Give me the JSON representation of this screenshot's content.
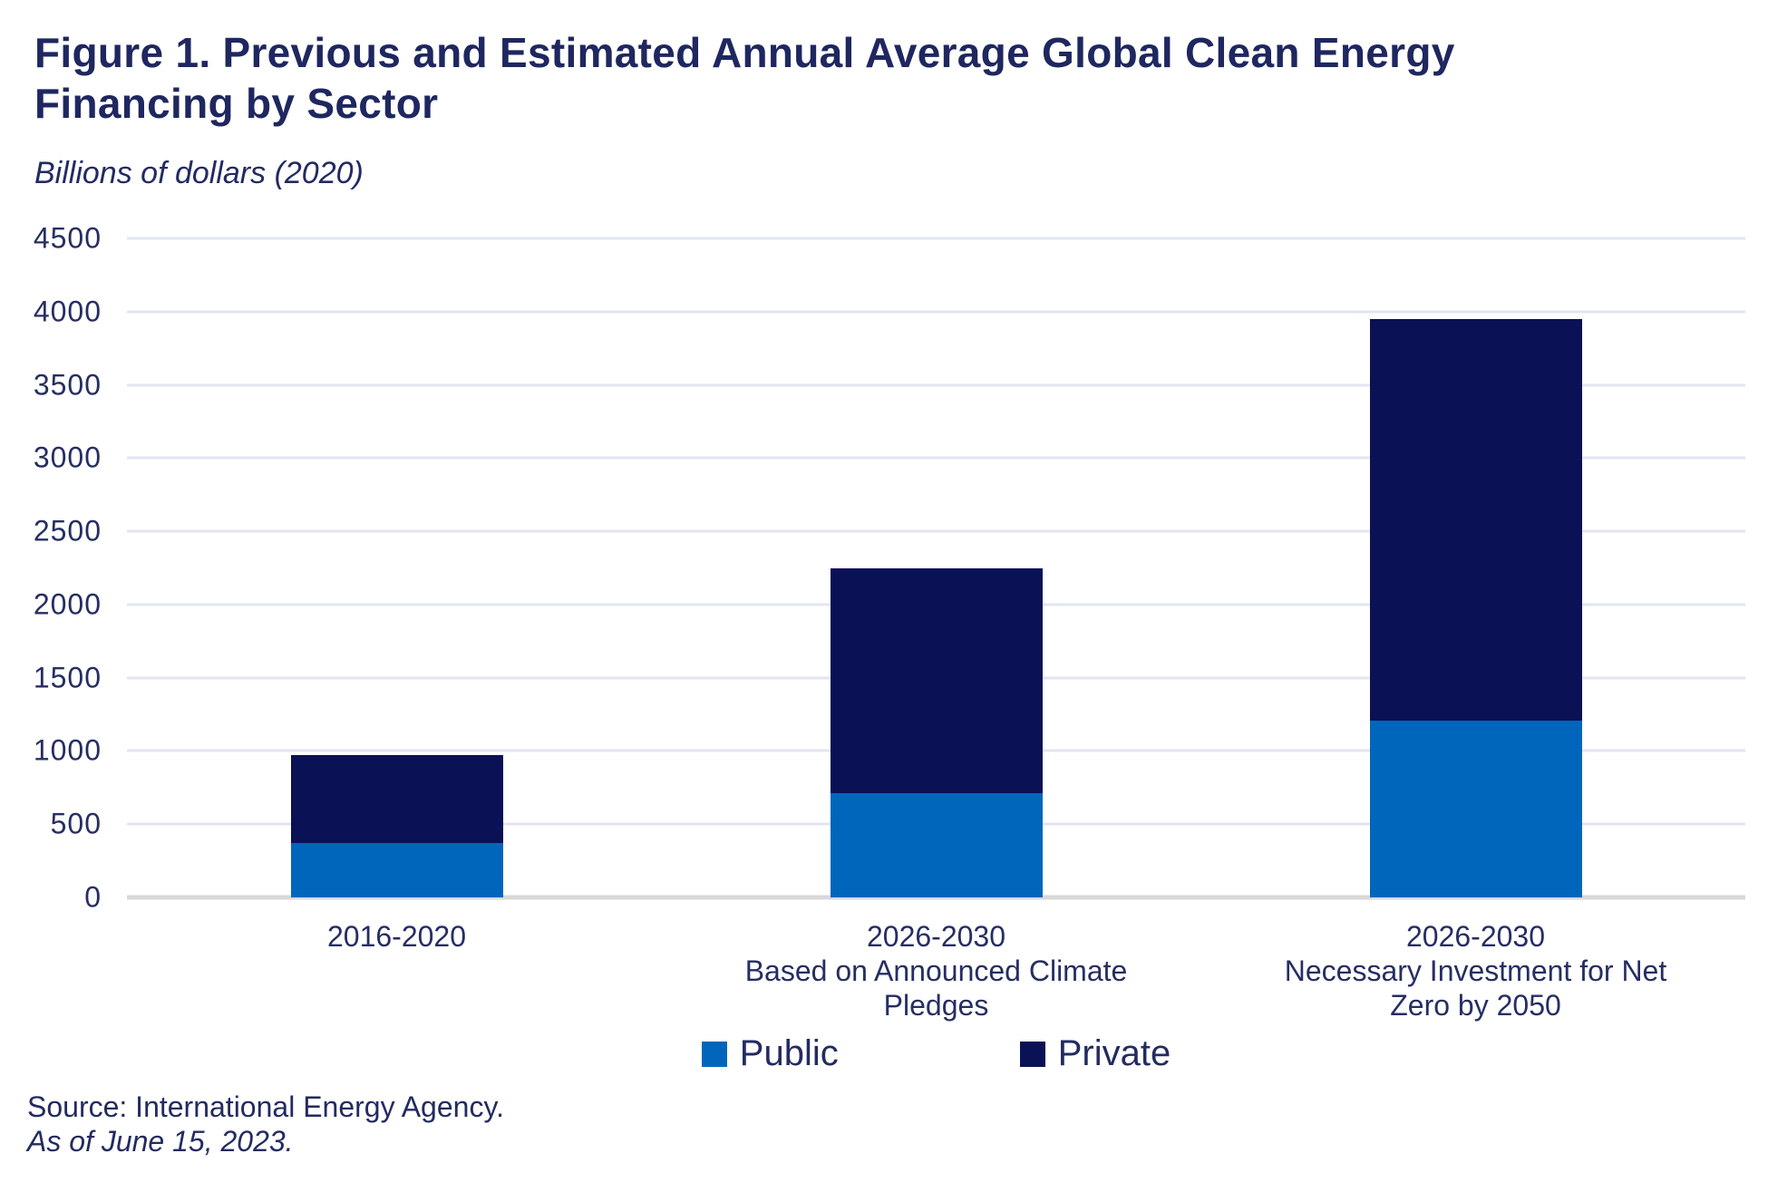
{
  "figure": {
    "title": "Figure 1. Previous and Estimated Annual Average Global Clean Energy Financing by Sector",
    "subtitle": "Billions of dollars (2020)",
    "source_line": "Source: International Energy Agency.",
    "as_of_line": "As of June 15, 2023."
  },
  "colors": {
    "public": "#0066BC",
    "private": "#0A1155",
    "text": "#20285E",
    "gridline": "#E2E5F1",
    "axis_line": "#D8D8D8"
  },
  "chart_data": {
    "type": "bar",
    "stacked": true,
    "title": "Figure 1. Previous and Estimated Annual Average Global Clean Energy Financing by Sector",
    "subtitle": "Billions of dollars (2020)",
    "xlabel": "",
    "ylabel": "Billions of dollars (2020)",
    "ylim": [
      0,
      4500
    ],
    "ytick_step": 500,
    "yticks": [
      0,
      500,
      1000,
      1500,
      2000,
      2500,
      3000,
      3500,
      4000,
      4500
    ],
    "grid": "horizontal",
    "legend_position": "bottom",
    "categories": [
      "2016-2020",
      "2026-2030 Based on Announced Climate Pledges",
      "2026-2030 Necessary Investment for Net Zero by 2050"
    ],
    "category_lines": [
      [
        "2016-2020"
      ],
      [
        "2026-2030",
        "Based on Announced Climate",
        "Pledges"
      ],
      [
        "2026-2030",
        "Necessary Investment for Net",
        "Zero by 2050"
      ]
    ],
    "series": [
      {
        "name": "Public",
        "color": "#0066BC",
        "values": [
          370,
          710,
          1210
        ]
      },
      {
        "name": "Private",
        "color": "#0A1155",
        "values": [
          600,
          1540,
          2740
        ]
      }
    ],
    "totals": [
      970,
      2250,
      3950
    ]
  }
}
